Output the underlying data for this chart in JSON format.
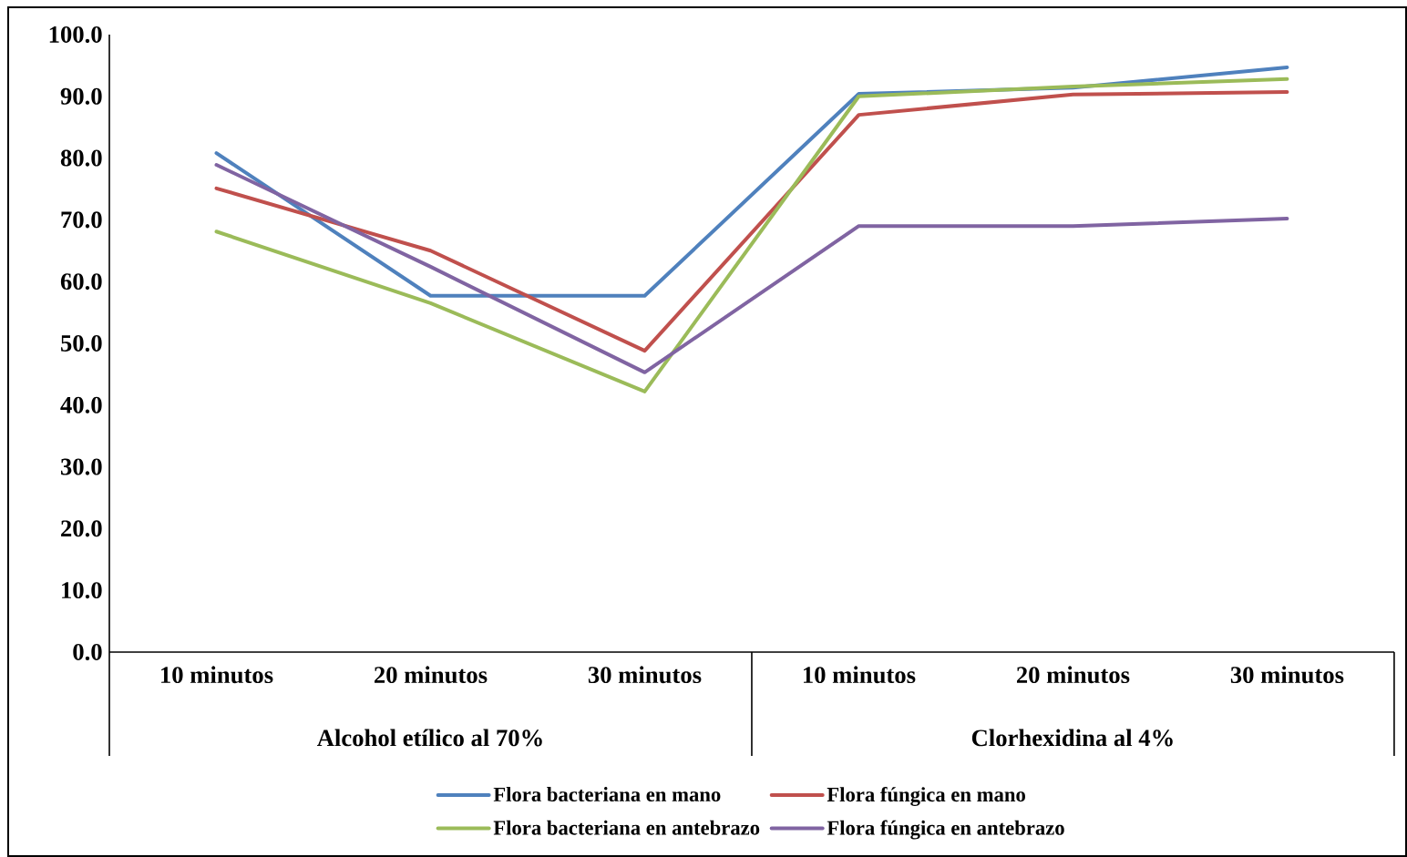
{
  "chart_data": {
    "type": "line",
    "categories": [
      "10 minutos",
      "20 minutos",
      "30 minutos",
      "10 minutos",
      "20 minutos",
      "30 minutos"
    ],
    "series": [
      {
        "name": "Flora bacteriana en mano",
        "color": "#4f81bd",
        "values": [
          80.8,
          57.7,
          57.7,
          90.4,
          91.4,
          94.7
        ]
      },
      {
        "name": "Flora fúngica en mano",
        "color": "#c0504d",
        "values": [
          75.1,
          65.0,
          48.8,
          87.0,
          90.3,
          90.7
        ]
      },
      {
        "name": "Flora bacteriana en antebrazo",
        "color": "#9bbb59",
        "values": [
          68.1,
          56.5,
          42.2,
          90.0,
          91.6,
          92.8
        ]
      },
      {
        "name": "Flora fúngica en antebrazo",
        "color": "#8064a2",
        "values": [
          78.9,
          62.4,
          45.3,
          69.0,
          69.0,
          70.2
        ]
      }
    ],
    "annotations": [
      "Alcohol etílico al 70%",
      "Clorhexidina al 4%"
    ],
    "ylim": [
      0,
      100
    ],
    "yticks": [
      {
        "value": 0,
        "label": "0.0"
      },
      {
        "value": 10,
        "label": "10.0"
      },
      {
        "value": 20,
        "label": "20.0"
      },
      {
        "value": 30,
        "label": "30.0"
      },
      {
        "value": 40,
        "label": "40.0"
      },
      {
        "value": 50,
        "label": "50.0"
      },
      {
        "value": 60,
        "label": "60.0"
      },
      {
        "value": 70,
        "label": "70.0"
      },
      {
        "value": 80,
        "label": "80.0"
      },
      {
        "value": 90,
        "label": "90.0"
      },
      {
        "value": 100,
        "label": "100.0"
      }
    ],
    "grid": false,
    "legend": "bottom",
    "marker": "none",
    "line_style": "solid"
  }
}
